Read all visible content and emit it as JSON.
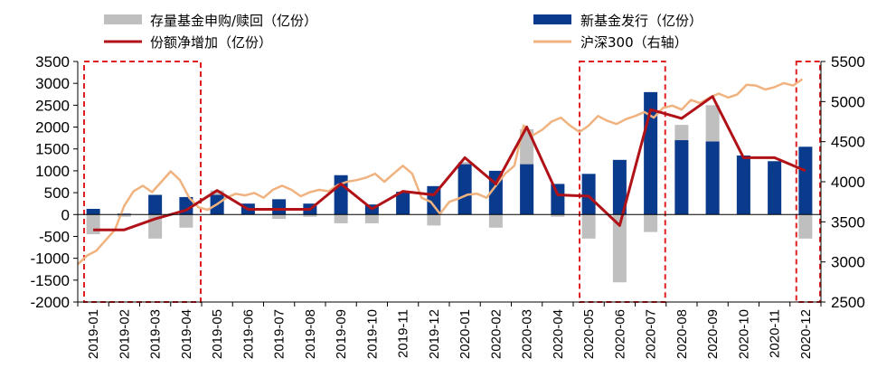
{
  "chart_data": {
    "type": "bar",
    "categories": [
      "2019-01",
      "2019-02",
      "2019-03",
      "2019-04",
      "2019-05",
      "2019-06",
      "2019-07",
      "2019-08",
      "2019-09",
      "2019-10",
      "2019-11",
      "2019-12",
      "2020-01",
      "2020-02",
      "2020-03",
      "2020-04",
      "2020-05",
      "2020-06",
      "2020-07",
      "2020-08",
      "2020-09",
      "2020-10",
      "2020-11",
      "2020-12"
    ],
    "series": [
      {
        "name": "存量基金申购/赎回（亿份）",
        "kind": "bar",
        "axis": "left",
        "values": [
          -450,
          -50,
          -550,
          -300,
          550,
          100,
          -100,
          -50,
          -200,
          -200,
          400,
          -250,
          1200,
          -300,
          1950,
          -50,
          -550,
          -1550,
          -400,
          2050,
          2500,
          1150,
          1050,
          -550
        ]
      },
      {
        "name": "新基金发行（亿份）",
        "kind": "bar",
        "axis": "left",
        "values": [
          130,
          20,
          450,
          400,
          450,
          250,
          350,
          250,
          900,
          230,
          520,
          650,
          1150,
          1000,
          1150,
          700,
          930,
          1250,
          2800,
          1700,
          1670,
          1350,
          1220,
          1550
        ]
      },
      {
        "name": "份额净增加（亿份）",
        "kind": "line",
        "axis": "left",
        "values": [
          -350,
          -350,
          -100,
          100,
          550,
          120,
          120,
          120,
          700,
          130,
          530,
          450,
          1300,
          700,
          2000,
          450,
          420,
          -250,
          2400,
          2200,
          2700,
          1300,
          1300,
          1000
        ]
      },
      {
        "name": "沪深300（右轴）",
        "kind": "line",
        "axis": "right",
        "x": [
          0,
          0.3,
          0.6,
          0.9,
          1.2,
          1.5,
          1.8,
          2.1,
          2.4,
          2.7,
          3.0,
          3.3,
          3.6,
          3.9,
          4.2,
          4.5,
          4.8,
          5.1,
          5.4,
          5.7,
          6.0,
          6.3,
          6.6,
          6.9,
          7.2,
          7.5,
          7.8,
          8.1,
          8.4,
          8.7,
          9.0,
          9.3,
          9.6,
          9.9,
          10.2,
          10.5,
          10.8,
          11.1,
          11.4,
          11.7,
          12.0,
          12.3,
          12.6,
          12.9,
          13.2,
          13.5,
          13.8,
          14.1,
          14.4,
          14.7,
          15.0,
          15.3,
          15.6,
          15.9,
          16.2,
          16.5,
          16.8,
          17.1,
          17.4,
          17.7,
          18.0,
          18.3,
          18.6,
          18.9,
          19.2,
          19.5,
          19.8,
          20.1,
          20.4,
          20.7,
          21.0,
          21.3,
          21.6,
          21.9,
          22.2,
          22.5,
          22.8,
          23.1,
          23.4
        ],
        "values": [
          2970,
          3080,
          3140,
          3270,
          3400,
          3700,
          3880,
          3950,
          3870,
          4000,
          4130,
          4020,
          3800,
          3680,
          3650,
          3720,
          3800,
          3850,
          3830,
          3860,
          3800,
          3900,
          3950,
          3900,
          3820,
          3870,
          3900,
          3880,
          3960,
          4000,
          4020,
          4050,
          4100,
          4000,
          4100,
          4200,
          4100,
          3800,
          3750,
          3600,
          3750,
          3790,
          3840,
          3850,
          3800,
          3950,
          4100,
          4200,
          4700,
          4580,
          4650,
          4750,
          4800,
          4700,
          4620,
          4700,
          4820,
          4760,
          4720,
          4780,
          4820,
          4870,
          4800,
          4920,
          4950,
          4900,
          5020,
          4980,
          5050,
          5100,
          5050,
          5090,
          5210,
          5200,
          5150,
          5180,
          5230,
          5200,
          5280
        ]
      }
    ],
    "y_left": {
      "min": -2000,
      "max": 3500,
      "ticks": [
        -2000,
        -1500,
        -1000,
        -500,
        0,
        500,
        1000,
        1500,
        2000,
        2500,
        3000,
        3500
      ]
    },
    "y_right": {
      "min": 2500,
      "max": 5500,
      "ticks": [
        2500,
        3000,
        3500,
        4000,
        4500,
        5000,
        5500
      ]
    },
    "highlight_ranges": [
      [
        0,
        3
      ],
      [
        16,
        18
      ],
      [
        23,
        23
      ]
    ],
    "colors": {
      "bar_existing": "#bfbfbf",
      "bar_new": "#0a3a8c",
      "line_net": "#b01218",
      "line_hs300": "#f0b27f",
      "highlight": "#e02020"
    },
    "legend_placement": "top"
  }
}
